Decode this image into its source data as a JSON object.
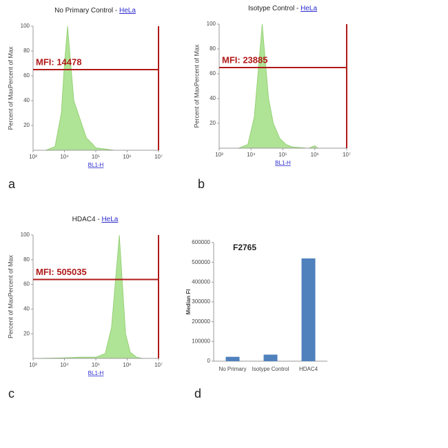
{
  "chart_data": [
    {
      "type": "area",
      "title": "No Primary Control - ",
      "title_link": "HeLa",
      "panel": "a",
      "annotation": "MFI: 14478",
      "gate_y": 65,
      "x_label": "BL1-H",
      "y_label": "Percent of MaxPercent of Max",
      "xscale": "log",
      "xlim": [
        1000,
        10000000
      ],
      "ylim": [
        0,
        100
      ],
      "xticks": [
        {
          "value": 1000,
          "label": "10³"
        },
        {
          "value": 10000,
          "label": "10⁴"
        },
        {
          "value": 100000,
          "label": "10⁵"
        },
        {
          "value": 1000000,
          "label": "10⁶"
        },
        {
          "value": 10000000,
          "label": "10⁷"
        }
      ],
      "yticks": [
        20,
        40,
        60,
        80,
        100
      ],
      "color": "#a6e08a",
      "gate_color": "#b01818",
      "x": [
        2512,
        5012,
        7943,
        10000,
        12589,
        15849,
        19953,
        31623,
        50119,
        79433,
        100000,
        199526,
        398107
      ],
      "values": [
        0,
        3,
        30,
        70,
        100,
        70,
        40,
        25,
        10,
        5,
        2,
        1,
        0
      ]
    },
    {
      "type": "area",
      "title": "Isotype Control - ",
      "title_link": "HeLa",
      "panel": "b",
      "annotation": "MFI: 23885",
      "gate_y": 65,
      "x_label": "BL1-H",
      "y_label": "Percent of MaxPercent of Max",
      "xscale": "log",
      "xlim": [
        1000,
        10000000
      ],
      "ylim": [
        0,
        100
      ],
      "xticks": [
        {
          "value": 1000,
          "label": "10³"
        },
        {
          "value": 10000,
          "label": "10⁴"
        },
        {
          "value": 100000,
          "label": "10⁵"
        },
        {
          "value": 1000000,
          "label": "10⁶"
        },
        {
          "value": 10000000,
          "label": "10⁷"
        }
      ],
      "yticks": [
        20,
        40,
        60,
        80,
        100
      ],
      "color": "#a6e08a",
      "gate_color": "#b01818",
      "x": [
        3981,
        7943,
        12589,
        17783,
        22387,
        28184,
        35481,
        50119,
        79433,
        125893,
        199526,
        630957,
        1000000,
        1258925
      ],
      "values": [
        0,
        3,
        25,
        70,
        100,
        70,
        40,
        20,
        8,
        3,
        1,
        0,
        2,
        0
      ]
    },
    {
      "type": "area",
      "title": "HDAC4 - ",
      "title_link": "HeLa",
      "panel": "c",
      "annotation": "MFI: 505035",
      "gate_y": 64,
      "x_label": "BL1-H",
      "y_label": "Percent of MaxPercent of Max",
      "xscale": "log",
      "xlim": [
        1000,
        10000000
      ],
      "ylim": [
        0,
        100
      ],
      "xticks": [
        {
          "value": 1000,
          "label": "10³"
        },
        {
          "value": 10000,
          "label": "10⁴"
        },
        {
          "value": 100000,
          "label": "10⁵"
        },
        {
          "value": 1000000,
          "label": "10⁶"
        },
        {
          "value": 10000000,
          "label": "10⁷"
        }
      ],
      "yticks": [
        20,
        40,
        60,
        80,
        100
      ],
      "color": "#a6e08a",
      "gate_color": "#b01818",
      "x": [
        1000,
        10000,
        31623,
        100000,
        199526,
        316228,
        446684,
        562341,
        707946,
        891251,
        1258925,
        1995262,
        3162278
      ],
      "values": [
        0,
        0.5,
        1,
        1,
        4,
        25,
        70,
        100,
        60,
        20,
        5,
        1,
        0
      ]
    },
    {
      "type": "bar",
      "title": "F2765",
      "panel": "d",
      "y_label": "Median FI",
      "categories": [
        "No Primary",
        "Isotype Control",
        "HDAC4"
      ],
      "values": [
        22000,
        33000,
        520000
      ],
      "color": "#4f81bd",
      "ylim": [
        0,
        600000
      ],
      "yticks": [
        0,
        100000,
        200000,
        300000,
        400000,
        500000,
        600000
      ]
    }
  ]
}
